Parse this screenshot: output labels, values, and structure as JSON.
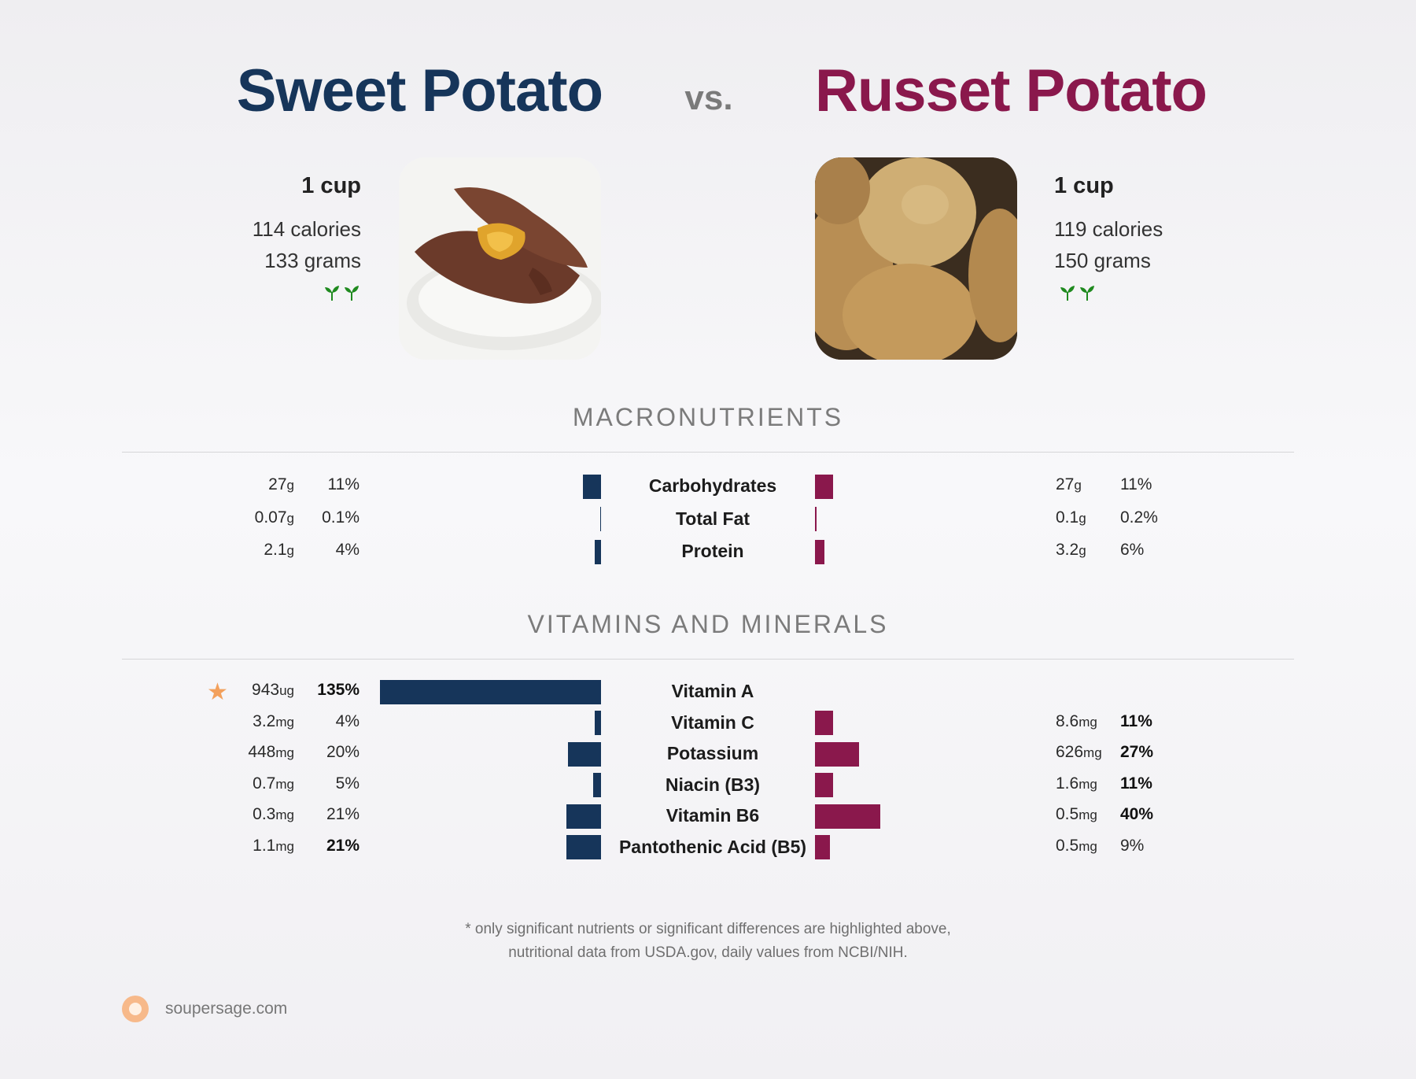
{
  "header": {
    "left_title": "Sweet Potato",
    "vs": "vs.",
    "right_title": "Russet Potato",
    "left_color": "#16355a",
    "right_color": "#8a184c"
  },
  "foods": {
    "left": {
      "serving": "1 cup",
      "calories": "114 calories",
      "grams": "133 grams",
      "icon": "sprout-icon"
    },
    "right": {
      "serving": "1 cup",
      "calories": "119 calories",
      "grams": "150 grams",
      "icon": "sprout-icon"
    }
  },
  "sections": {
    "macros_title": "MACRONUTRIENTS",
    "vitamins_title": "VITAMINS AND MINERALS"
  },
  "chart_data": [
    {
      "type": "bar",
      "title": "MACRONUTRIENTS",
      "categories": [
        "Carbohydrates",
        "Total Fat",
        "Protein"
      ],
      "series": [
        {
          "name": "Sweet Potato",
          "amount": [
            "27",
            "0.07",
            "2.1"
          ],
          "unit": [
            "g",
            "g",
            "g"
          ],
          "pct_label": [
            "11%",
            "0.1%",
            "4%"
          ],
          "values": [
            11,
            0.1,
            4
          ],
          "bold": [
            false,
            false,
            false
          ]
        },
        {
          "name": "Russet Potato",
          "amount": [
            "27",
            "0.1",
            "3.2"
          ],
          "unit": [
            "g",
            "g",
            "g"
          ],
          "pct_label": [
            "11%",
            "0.2%",
            "6%"
          ],
          "values": [
            11,
            0.2,
            6
          ],
          "bold": [
            false,
            false,
            false
          ]
        }
      ]
    },
    {
      "type": "bar",
      "title": "VITAMINS AND MINERALS",
      "categories": [
        "Vitamin A",
        "Vitamin C",
        "Potassium",
        "Niacin (B3)",
        "Vitamin B6",
        "Pantothenic Acid (B5)"
      ],
      "series": [
        {
          "name": "Sweet Potato",
          "amount": [
            "943",
            "3.2",
            "448",
            "0.7",
            "0.3",
            "1.1"
          ],
          "unit": [
            "ug",
            "mg",
            "mg",
            "mg",
            "mg",
            "mg"
          ],
          "pct_label": [
            "135%",
            "4%",
            "20%",
            "5%",
            "21%",
            "21%"
          ],
          "values": [
            135,
            4,
            20,
            5,
            21,
            21
          ],
          "bold": [
            true,
            false,
            false,
            false,
            false,
            true
          ]
        },
        {
          "name": "Russet Potato",
          "amount": [
            "",
            "8.6",
            "626",
            "1.6",
            "0.5",
            "0.5"
          ],
          "unit": [
            "",
            "mg",
            "mg",
            "mg",
            "mg",
            "mg"
          ],
          "pct_label": [
            "",
            "11%",
            "27%",
            "11%",
            "40%",
            "9%"
          ],
          "values": [
            0,
            11,
            27,
            11,
            40,
            9
          ],
          "bold": [
            false,
            true,
            true,
            true,
            true,
            false
          ]
        }
      ]
    }
  ],
  "footnote": {
    "line1": "* only significant nutrients or significant differences are highlighted above,",
    "line2": "nutritional data from USDA.gov, daily values from NCBI/NIH."
  },
  "brand": {
    "name": "soupersage.com"
  }
}
